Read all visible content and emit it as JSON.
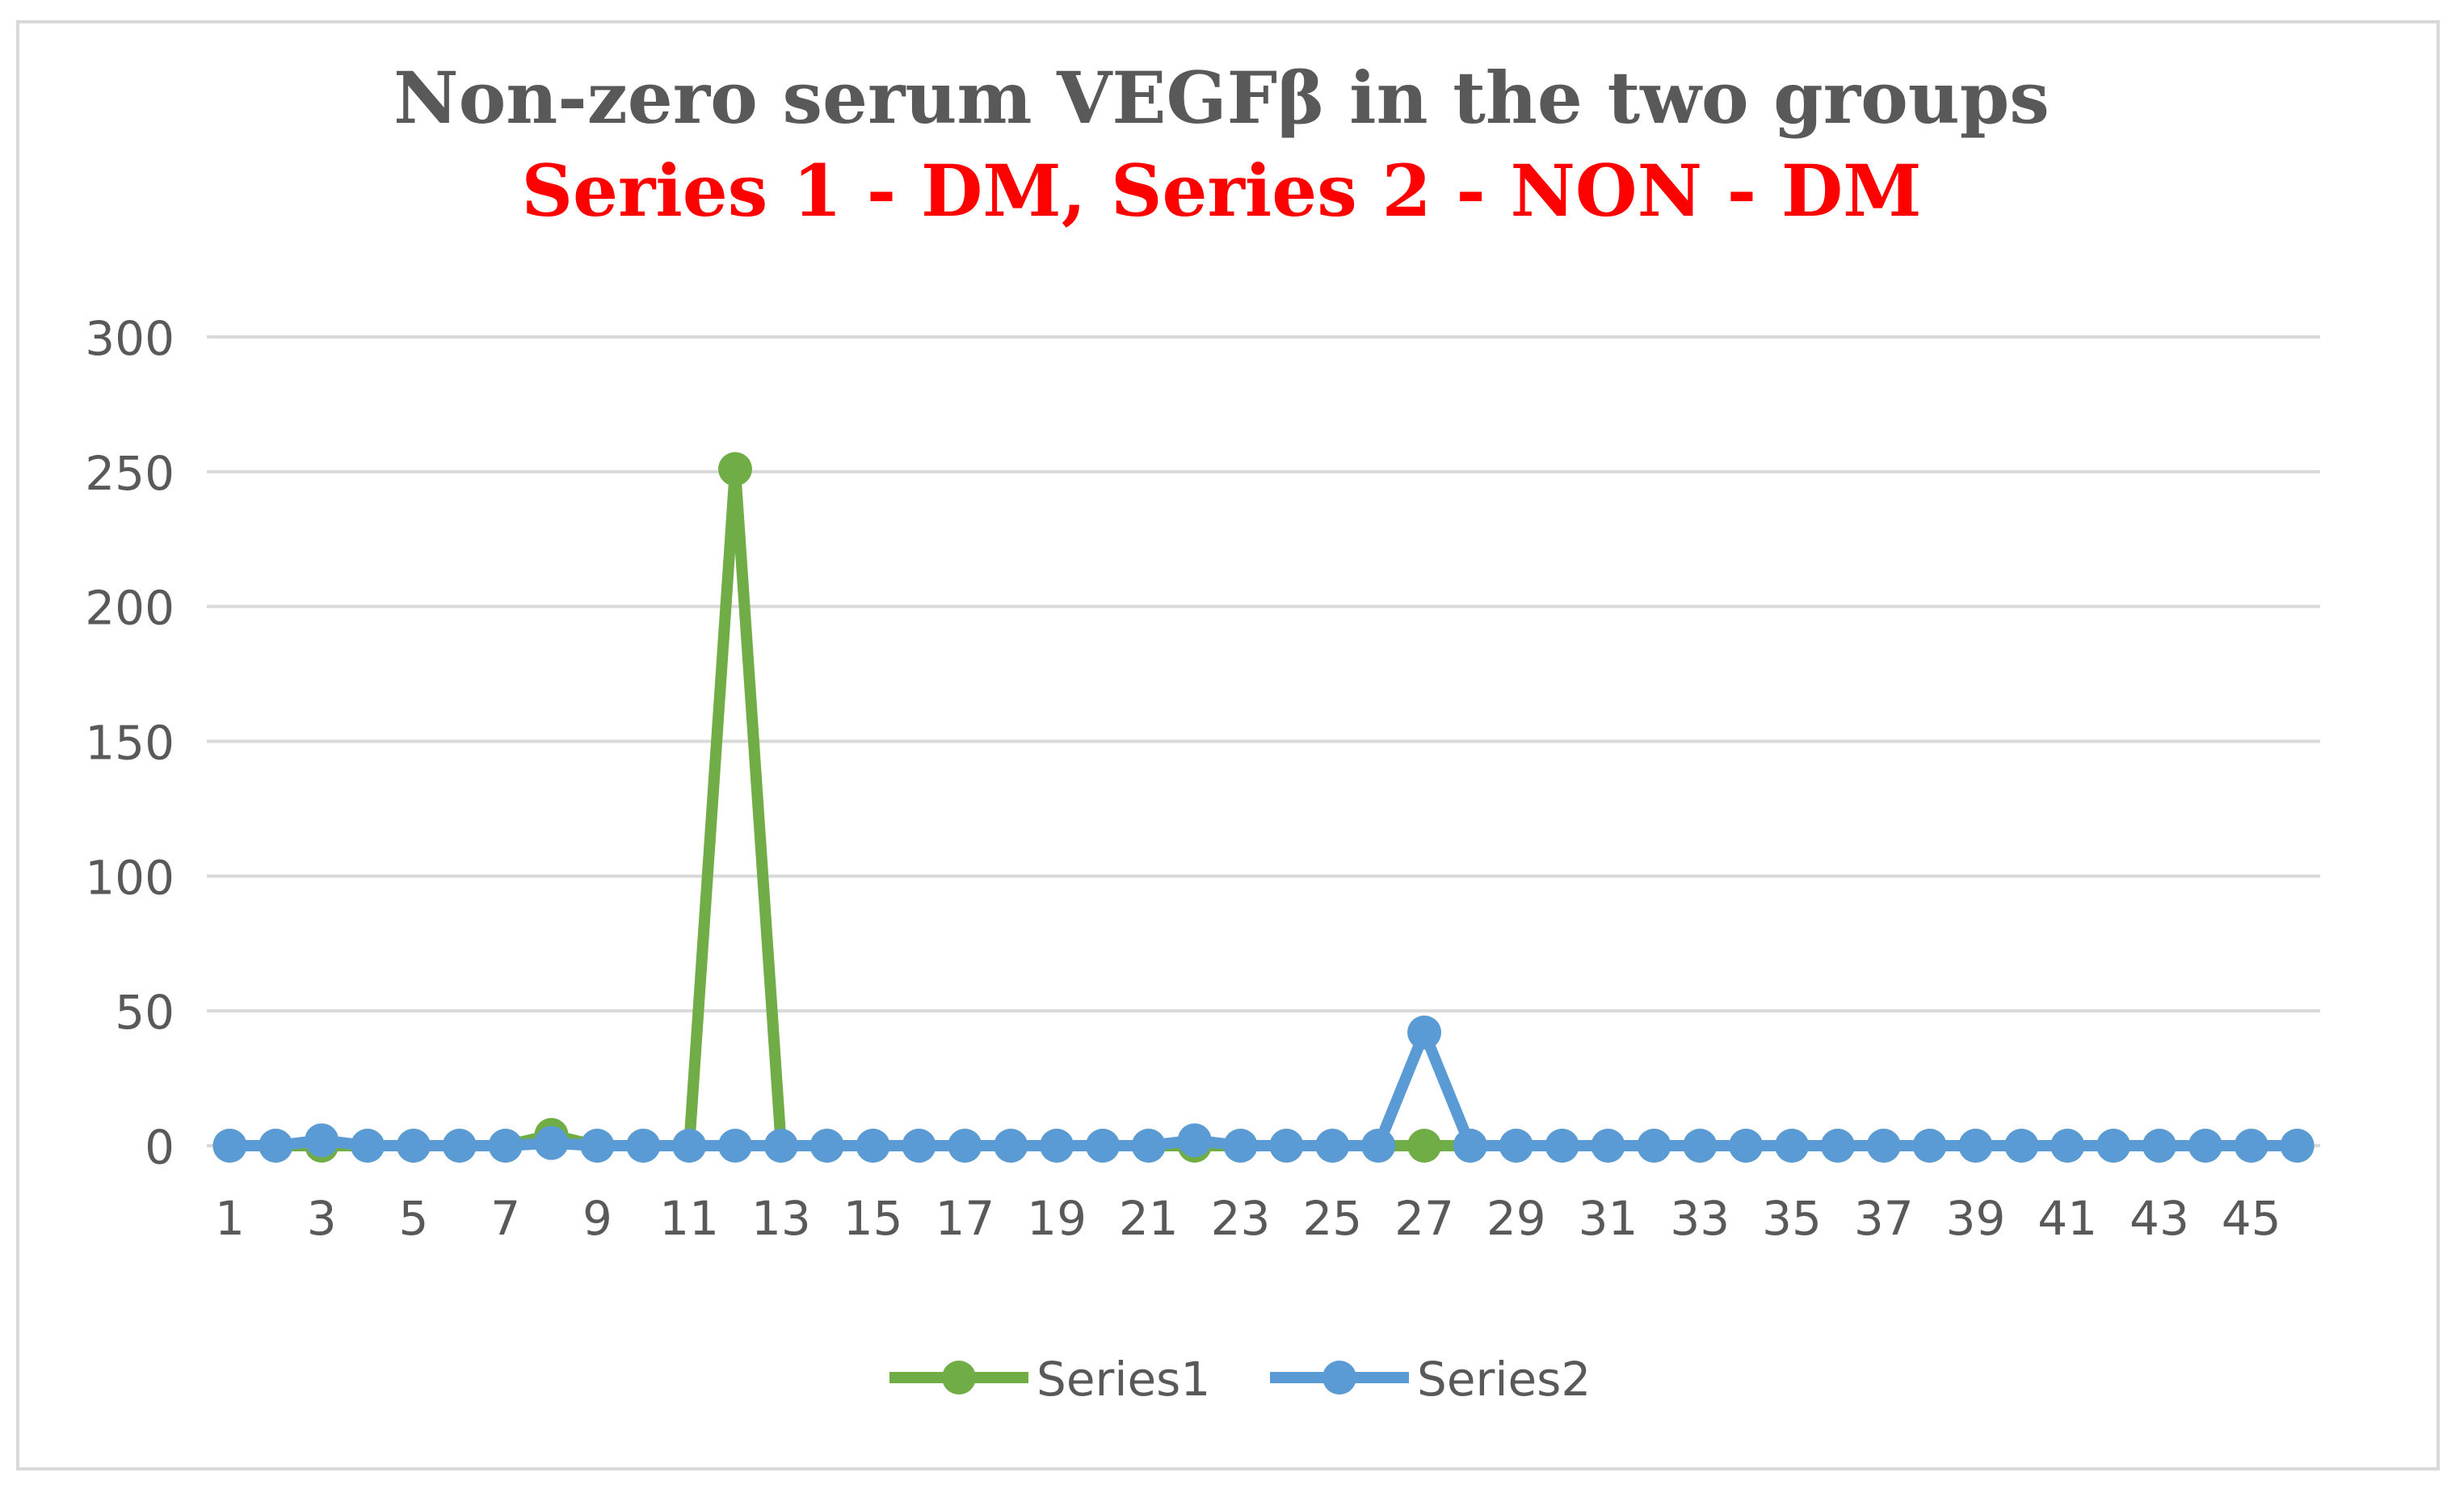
{
  "chart_data": {
    "type": "line",
    "title": "Non-zero serum VEGFβ in the two groups",
    "subtitle": "Series 1 - DM, Series 2 - NON - DM",
    "xlabel": "",
    "ylabel": "",
    "ylim": [
      0,
      300
    ],
    "y_ticks": [
      0,
      50,
      100,
      150,
      200,
      250,
      300
    ],
    "x": [
      1,
      2,
      3,
      4,
      5,
      6,
      7,
      8,
      9,
      10,
      11,
      12,
      13,
      14,
      15,
      16,
      17,
      18,
      19,
      20,
      21,
      22,
      23,
      24,
      25,
      26,
      27,
      28,
      29,
      30,
      31,
      32,
      33,
      34,
      35,
      36,
      37,
      38,
      39,
      40,
      41,
      42,
      43,
      44,
      45,
      46
    ],
    "x_tick_labels": [
      "1",
      "3",
      "5",
      "7",
      "9",
      "11",
      "13",
      "15",
      "17",
      "19",
      "21",
      "23",
      "25",
      "27",
      "29",
      "31",
      "33",
      "35",
      "37",
      "39",
      "41",
      "43",
      "45"
    ],
    "grid": true,
    "legend_position": "bottom",
    "series": [
      {
        "name": "Series1",
        "color": "#70ad47",
        "values": [
          0,
          0,
          0,
          0,
          0,
          0,
          0,
          4,
          0,
          0,
          0,
          251,
          0,
          0,
          0,
          0,
          0,
          0,
          0,
          0,
          0,
          0,
          0,
          0,
          0,
          0,
          0,
          0,
          0,
          0,
          0,
          0,
          0,
          0,
          0,
          0,
          0,
          0,
          0,
          0,
          0,
          0,
          0,
          0,
          0,
          0
        ]
      },
      {
        "name": "Series2",
        "color": "#5b9bd5",
        "values": [
          0,
          0,
          2,
          0,
          0,
          0,
          0,
          1,
          0,
          0,
          0,
          0,
          0,
          0,
          0,
          0,
          0,
          0,
          0,
          0,
          0,
          2,
          0,
          0,
          0,
          0,
          42,
          0,
          0,
          0,
          0,
          0,
          0,
          0,
          0,
          0,
          0,
          0,
          0,
          0,
          0,
          0,
          0,
          0,
          0,
          0
        ]
      }
    ]
  },
  "colors": {
    "title": "#595959",
    "subtitle": "#ff0000",
    "gridline": "#d9d9d9"
  }
}
